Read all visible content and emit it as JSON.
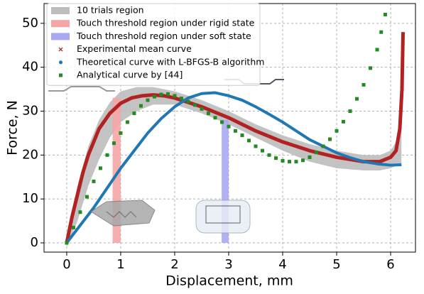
{
  "chart_data": {
    "type": "line",
    "xlabel": "Displacement, mm",
    "ylabel": "Force, N",
    "xlim": [
      -0.42,
      6.46
    ],
    "ylim": [
      -2.1,
      54.5
    ],
    "xticks": [
      0,
      1,
      2,
      3,
      4,
      5,
      6
    ],
    "yticks": [
      0,
      10,
      20,
      30,
      40,
      50
    ],
    "grid": true,
    "legend": "upper left",
    "regions": [
      {
        "name": "10 trials region",
        "color": "#bdbdbd",
        "x": [
          0,
          0.2,
          0.4,
          0.6,
          0.8,
          1.0,
          1.3,
          1.6,
          2.0,
          2.5,
          3.0,
          3.5,
          4.0,
          4.5,
          5.0,
          5.5,
          5.8,
          6.0,
          6.1,
          6.2
        ],
        "upper": [
          2,
          13,
          22,
          28,
          32,
          34.5,
          35.5,
          35.5,
          34.5,
          32.5,
          30,
          27,
          24.5,
          22.5,
          21,
          20,
          20,
          21,
          23,
          27
        ],
        "lower": [
          -1,
          5,
          13,
          19,
          24,
          27.5,
          30,
          31.5,
          31.5,
          29.5,
          27,
          24,
          21,
          18.5,
          17,
          16.5,
          16.5,
          17,
          17.5,
          18
        ]
      }
    ],
    "spans": [
      {
        "name": "Touch threshold region under rigid state",
        "color": "#f6a5a5",
        "x": [
          0.85,
          1.0
        ],
        "y": [
          0,
          33
        ]
      },
      {
        "name": "Touch threshold region under soft state",
        "color": "#a9a9f2",
        "x": [
          2.87,
          3.0
        ],
        "y": [
          0,
          28
        ]
      }
    ],
    "series": [
      {
        "name": "Experimental mean curve",
        "color": "#b22222",
        "marker": "x",
        "x": [
          0,
          0.1,
          0.2,
          0.3,
          0.4,
          0.5,
          0.6,
          0.8,
          1.0,
          1.2,
          1.4,
          1.6,
          1.8,
          2.0,
          2.5,
          3.0,
          3.5,
          4.0,
          4.5,
          5.0,
          5.5,
          5.8,
          6.0,
          6.1,
          6.17,
          6.21,
          6.23
        ],
        "values": [
          0,
          6,
          11,
          16,
          20,
          23,
          26,
          29.5,
          31.8,
          33,
          33.5,
          33.7,
          33.5,
          33,
          31,
          28.5,
          25.5,
          23,
          21,
          19.5,
          18.5,
          18.5,
          19.5,
          21,
          26,
          35,
          48
        ]
      },
      {
        "name": "Theoretical curve with L-BFGS-B algorithm",
        "color": "#1f77b4",
        "marker": "o",
        "x": [
          0,
          0.25,
          0.5,
          0.75,
          1.0,
          1.25,
          1.5,
          1.75,
          2.0,
          2.25,
          2.5,
          2.75,
          3.0,
          3.25,
          3.5,
          3.75,
          4.0,
          4.25,
          4.5,
          4.75,
          5.0,
          5.25,
          5.5,
          5.75,
          6.0,
          6.2
        ],
        "values": [
          0,
          4,
          8,
          12.5,
          17,
          21,
          25,
          28.3,
          31,
          33,
          34,
          34.2,
          33.5,
          32.5,
          31,
          29.3,
          27.5,
          25.5,
          23.5,
          22,
          20.5,
          19.4,
          18.5,
          18,
          17.7,
          17.8
        ]
      },
      {
        "name": "Analytical curve by [44]",
        "color": "#228b22",
        "marker": "s",
        "x": [
          0,
          0.125,
          0.25,
          0.375,
          0.5,
          0.625,
          0.75,
          0.875,
          1.0,
          1.125,
          1.25,
          1.375,
          1.5,
          1.625,
          1.75,
          1.875,
          2.0,
          2.125,
          2.25,
          2.375,
          2.5,
          2.625,
          2.75,
          2.875,
          3.0,
          3.125,
          3.25,
          3.375,
          3.5,
          3.625,
          3.75,
          3.875,
          4.0,
          4.125,
          4.25,
          4.375,
          4.5,
          4.625,
          4.75,
          4.875,
          5.0,
          5.125,
          5.25,
          5.375,
          5.5,
          5.625,
          5.75,
          5.825,
          5.9
        ],
        "values": [
          0,
          3.5,
          7,
          10.5,
          14,
          17,
          20,
          22.7,
          25,
          27.5,
          29.5,
          31.2,
          32.5,
          33.3,
          33.8,
          33.9,
          33.5,
          32.9,
          32.2,
          31.4,
          30.5,
          29.5,
          28.5,
          27.5,
          26.5,
          25.5,
          24.5,
          23.3,
          22,
          21,
          20,
          19.3,
          18.7,
          18.5,
          18.5,
          18.8,
          19.5,
          20.6,
          22,
          23.6,
          25.5,
          27.6,
          30,
          32.8,
          36,
          39.8,
          44,
          48,
          52
        ]
      }
    ]
  }
}
